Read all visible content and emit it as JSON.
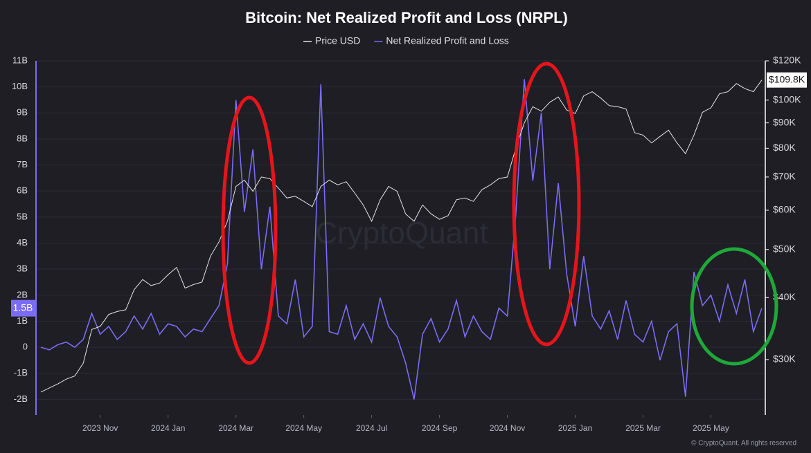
{
  "chart_data": {
    "type": "line",
    "title": "Bitcoin: Net Realized Profit and Loss (NRPL)",
    "footer": "© CryptoQuant. All rights reserved",
    "watermark": "CryptoQuant",
    "categories": [
      null,
      null,
      null,
      null,
      null,
      null,
      null,
      "2023 Nov",
      null,
      null,
      null,
      null,
      null,
      null,
      null,
      "2024 Jan",
      null,
      null,
      null,
      null,
      null,
      null,
      null,
      "2024 Mar",
      null,
      null,
      null,
      null,
      null,
      null,
      null,
      "2024 May",
      null,
      null,
      null,
      null,
      null,
      null,
      null,
      "2024 Jul",
      null,
      null,
      null,
      null,
      null,
      null,
      null,
      "2024 Sep",
      null,
      null,
      null,
      null,
      null,
      null,
      null,
      "2024 Nov",
      null,
      null,
      null,
      null,
      null,
      null,
      null,
      "2025 Jan",
      null,
      null,
      null,
      null,
      null,
      null,
      null,
      "2025 Mar",
      null,
      null,
      null,
      null,
      null,
      null,
      null,
      "2025 May",
      null,
      null,
      null,
      null,
      null,
      null
    ],
    "series": [
      {
        "name": "Price USD",
        "color": "#e6e6e6",
        "axis": "y2",
        "last_value_label": "$109.8K",
        "values": [
          25800,
          26300,
          26800,
          27400,
          27800,
          29500,
          34500,
          35000,
          37000,
          37500,
          37800,
          41500,
          43500,
          42300,
          42800,
          44500,
          46000,
          41800,
          42500,
          43000,
          48500,
          51800,
          57000,
          67000,
          69000,
          65500,
          70000,
          69500,
          66500,
          63500,
          64000,
          62500,
          61000,
          67000,
          69000,
          67500,
          68500,
          65000,
          61500,
          57000,
          63000,
          67000,
          65500,
          59000,
          57000,
          61500,
          59000,
          57500,
          58500,
          63000,
          63500,
          62500,
          66000,
          67500,
          69500,
          70000,
          80000,
          90000,
          97000,
          95000,
          99000,
          101500,
          95500,
          94000,
          102000,
          104000,
          101000,
          97500,
          97000,
          96000,
          86000,
          85000,
          82000,
          84500,
          87000,
          82000,
          78000,
          85000,
          94500,
          96500,
          103000,
          104000,
          108000,
          105500,
          104000,
          109800
        ]
      },
      {
        "name": "Net Realized Profit and Loss",
        "color": "#7b6cf6",
        "axis": "y",
        "last_value_label": "1.5B",
        "values": [
          0.0,
          -0.1,
          0.1,
          0.2,
          0.0,
          0.3,
          1.3,
          0.5,
          0.8,
          0.3,
          0.6,
          1.2,
          0.7,
          1.3,
          0.5,
          0.9,
          0.8,
          0.4,
          0.7,
          0.6,
          1.1,
          1.6,
          3.2,
          9.5,
          5.2,
          7.6,
          3.0,
          5.4,
          1.2,
          0.9,
          2.6,
          0.4,
          0.8,
          10.1,
          0.6,
          0.5,
          1.6,
          0.3,
          0.9,
          0.2,
          1.9,
          0.8,
          0.4,
          -0.6,
          -2.0,
          0.5,
          1.1,
          0.2,
          0.7,
          1.8,
          0.4,
          1.2,
          0.6,
          0.3,
          1.5,
          1.2,
          5.1,
          10.3,
          6.4,
          9.0,
          3.0,
          6.3,
          2.8,
          0.8,
          3.5,
          1.2,
          0.7,
          1.4,
          0.3,
          1.8,
          0.5,
          0.2,
          1.0,
          -0.5,
          0.6,
          0.9,
          -1.9,
          2.9,
          1.6,
          2.0,
          1.0,
          2.4,
          1.3,
          2.6,
          0.6,
          1.5
        ]
      }
    ],
    "ylim": [
      -2.6,
      11
    ],
    "yticks": [
      {
        "value": -2,
        "label": "-2B"
      },
      {
        "value": -1,
        "label": "-1B"
      },
      0,
      {
        "value": 1,
        "label": "1B"
      },
      {
        "value": 2,
        "label": "2B"
      },
      {
        "value": 3,
        "label": "3B"
      },
      {
        "value": 4,
        "label": "4B"
      },
      {
        "value": 5,
        "label": "5B"
      },
      {
        "value": 6,
        "label": "6B"
      },
      {
        "value": 7,
        "label": "7B"
      },
      {
        "value": 8,
        "label": "8B"
      },
      {
        "value": 9,
        "label": "9B"
      },
      {
        "value": 10,
        "label": "10B"
      },
      {
        "value": 11,
        "label": "11B"
      }
    ],
    "y2lim": [
      23200,
      120000
    ],
    "y2scale": "log",
    "y2ticks": [
      {
        "value": 30000,
        "label": "$30K"
      },
      {
        "value": 40000,
        "label": "$40K"
      },
      {
        "value": 50000,
        "label": "$50K"
      },
      {
        "value": 60000,
        "label": "$60K"
      },
      {
        "value": 70000,
        "label": "$70K"
      },
      {
        "value": 80000,
        "label": "$80K"
      },
      {
        "value": 90000,
        "label": "$90K"
      },
      {
        "value": 100000,
        "label": "$100K"
      },
      {
        "value": 120000,
        "label": "$120K"
      }
    ],
    "grid": true
  }
}
